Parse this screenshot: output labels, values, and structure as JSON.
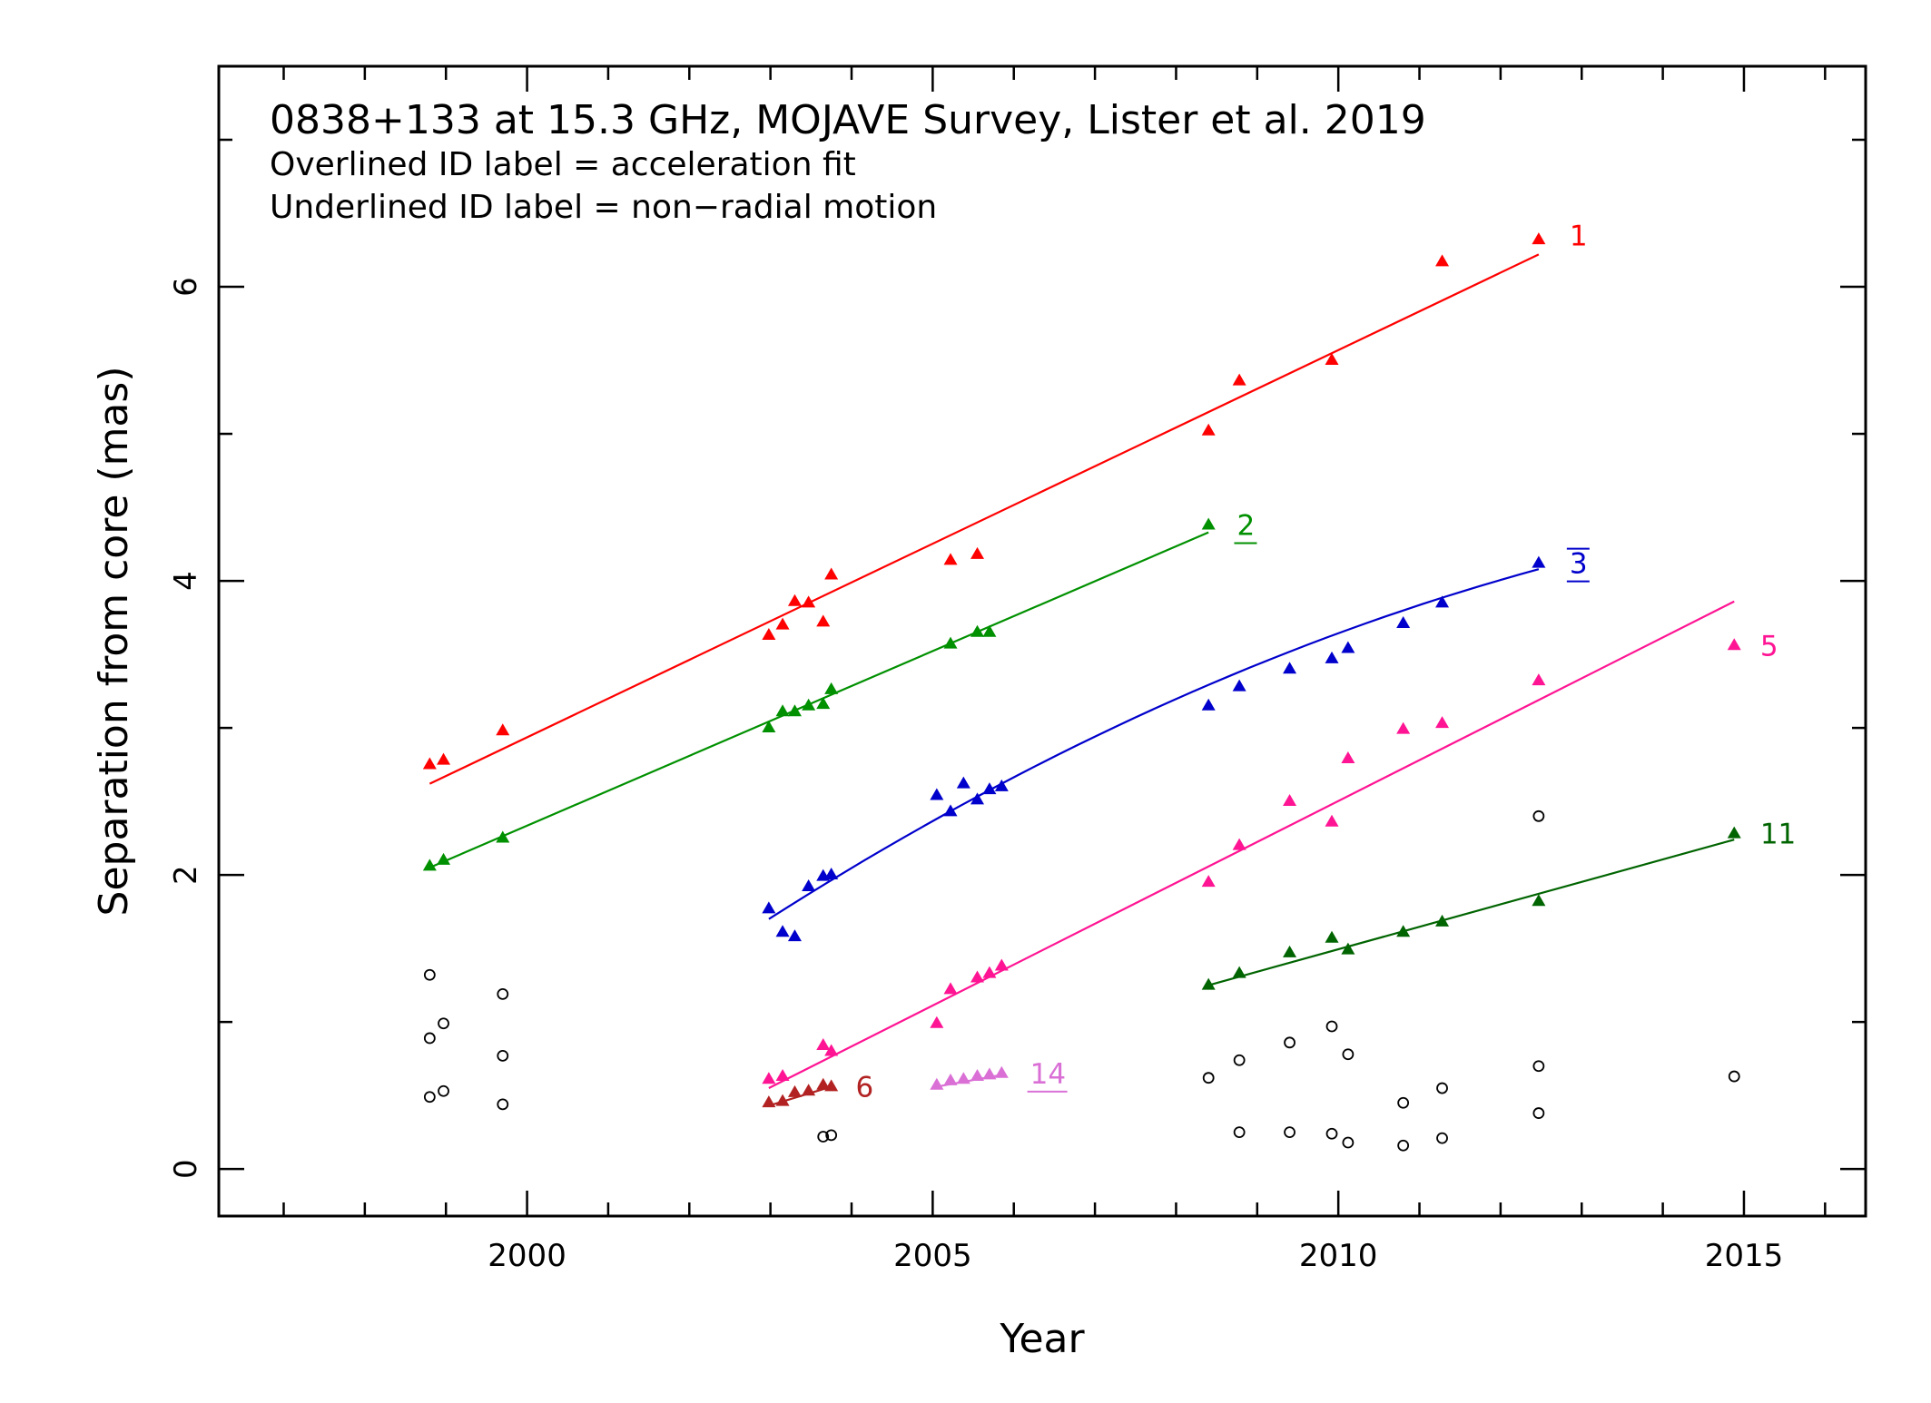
{
  "chart_data": {
    "type": "scatter",
    "title": "0838+133 at 15.3 GHz, MOJAVE Survey, Lister et al. 2019",
    "subtitle_lines": [
      "Overlined ID label = acceleration fit",
      "Underlined ID label = non−radial motion"
    ],
    "xlabel": "Year",
    "ylabel": "Separation from core (mas)",
    "xlim": [
      1996.2,
      2016.5
    ],
    "ylim": [
      -0.32,
      7.5
    ],
    "x_ticks": [
      2000,
      2005,
      2010,
      2015
    ],
    "x_tick_labels": [
      "2000",
      "2005",
      "2010",
      "2015"
    ],
    "y_ticks": [
      0,
      2,
      4,
      6
    ],
    "y_tick_labels": [
      "0",
      "2",
      "4",
      "6"
    ],
    "grid": false,
    "legend": "none",
    "series": [
      {
        "name": "1",
        "color": "#ff0000",
        "marker": "triangle",
        "label_style": "plain",
        "label_at": [
          2012.85,
          6.35
        ],
        "points": [
          [
            1998.8,
            2.75
          ],
          [
            1998.97,
            2.78
          ],
          [
            1999.7,
            2.98
          ],
          [
            2002.98,
            3.63
          ],
          [
            2003.15,
            3.7
          ],
          [
            2003.3,
            3.86
          ],
          [
            2003.47,
            3.85
          ],
          [
            2003.65,
            3.72
          ],
          [
            2003.75,
            4.04
          ],
          [
            2005.22,
            4.14
          ],
          [
            2005.55,
            4.18
          ],
          [
            2008.4,
            5.02
          ],
          [
            2008.78,
            5.36
          ],
          [
            2009.92,
            5.5
          ],
          [
            2011.28,
            6.17
          ],
          [
            2012.47,
            6.32
          ]
        ],
        "fit": {
          "type": "linear",
          "x": [
            1998.8,
            2012.47
          ],
          "y": [
            2.62,
            6.22
          ]
        }
      },
      {
        "name": "2",
        "color": "#009000",
        "marker": "triangle",
        "label_style": "underline",
        "label_at": [
          2008.75,
          4.38
        ],
        "points": [
          [
            1998.8,
            2.06
          ],
          [
            1998.97,
            2.1
          ],
          [
            1999.7,
            2.25
          ],
          [
            2002.98,
            3.0
          ],
          [
            2003.15,
            3.11
          ],
          [
            2003.3,
            3.11
          ],
          [
            2003.47,
            3.15
          ],
          [
            2003.65,
            3.16
          ],
          [
            2003.75,
            3.26
          ],
          [
            2005.22,
            3.57
          ],
          [
            2005.55,
            3.65
          ],
          [
            2005.7,
            3.65
          ],
          [
            2008.4,
            4.38
          ]
        ],
        "fit": {
          "type": "linear",
          "x": [
            1998.8,
            2008.4
          ],
          "y": [
            2.05,
            4.33
          ]
        }
      },
      {
        "name": "3",
        "color": "#0000cc",
        "marker": "triangle",
        "label_style": "overline",
        "label_at": [
          2012.85,
          4.12
        ],
        "points": [
          [
            2002.98,
            1.77
          ],
          [
            2003.15,
            1.61
          ],
          [
            2003.3,
            1.58
          ],
          [
            2003.47,
            1.92
          ],
          [
            2003.65,
            1.99
          ],
          [
            2003.75,
            2.0
          ],
          [
            2005.05,
            2.54
          ],
          [
            2005.22,
            2.43
          ],
          [
            2005.38,
            2.62
          ],
          [
            2005.55,
            2.51
          ],
          [
            2005.7,
            2.58
          ],
          [
            2005.85,
            2.6
          ],
          [
            2008.4,
            3.15
          ],
          [
            2008.78,
            3.28
          ],
          [
            2009.4,
            3.4
          ],
          [
            2009.92,
            3.47
          ],
          [
            2010.12,
            3.54
          ],
          [
            2010.8,
            3.71
          ],
          [
            2011.28,
            3.85
          ],
          [
            2012.47,
            4.12
          ]
        ],
        "fit": {
          "type": "quadratic",
          "x": [
            2002.98,
            2012.47
          ],
          "coef": [
            -0.0106,
            0.3513,
            1.7
          ],
          "x0": 2002.98
        }
      },
      {
        "name": "5",
        "color": "#ff1493",
        "marker": "triangle",
        "label_style": "plain",
        "label_at": [
          2015.2,
          3.56
        ],
        "points": [
          [
            2002.98,
            0.61
          ],
          [
            2003.15,
            0.63
          ],
          [
            2003.65,
            0.84
          ],
          [
            2003.75,
            0.8
          ],
          [
            2005.05,
            0.99
          ],
          [
            2005.22,
            1.22
          ],
          [
            2005.55,
            1.3
          ],
          [
            2005.7,
            1.33
          ],
          [
            2005.85,
            1.38
          ],
          [
            2008.4,
            1.95
          ],
          [
            2008.78,
            2.2
          ],
          [
            2009.4,
            2.5
          ],
          [
            2009.92,
            2.36
          ],
          [
            2010.12,
            2.79
          ],
          [
            2010.8,
            2.99
          ],
          [
            2011.28,
            3.03
          ],
          [
            2012.47,
            3.32
          ],
          [
            2014.88,
            3.56
          ]
        ],
        "fit": {
          "type": "linear",
          "x": [
            2002.98,
            2014.88
          ],
          "y": [
            0.55,
            3.86
          ]
        }
      },
      {
        "name": "6",
        "color": "#b22222",
        "marker": "triangle",
        "label_style": "plain",
        "label_at": [
          2004.05,
          0.56
        ],
        "points": [
          [
            2002.98,
            0.45
          ],
          [
            2003.15,
            0.46
          ],
          [
            2003.3,
            0.52
          ],
          [
            2003.47,
            0.53
          ],
          [
            2003.65,
            0.57
          ],
          [
            2003.75,
            0.56
          ]
        ],
        "fit": {
          "type": "linear",
          "x": [
            2002.98,
            2003.75
          ],
          "y": [
            0.43,
            0.56
          ]
        }
      },
      {
        "name": "11",
        "color": "#006400",
        "marker": "triangle",
        "label_style": "plain",
        "label_at": [
          2015.2,
          2.28
        ],
        "points": [
          [
            2008.4,
            1.25
          ],
          [
            2008.78,
            1.33
          ],
          [
            2009.4,
            1.47
          ],
          [
            2009.92,
            1.57
          ],
          [
            2010.12,
            1.49
          ],
          [
            2010.8,
            1.61
          ],
          [
            2011.28,
            1.68
          ],
          [
            2012.47,
            1.82
          ],
          [
            2014.88,
            2.28
          ]
        ],
        "fit": {
          "type": "linear",
          "x": [
            2008.4,
            2014.88
          ],
          "y": [
            1.25,
            2.24
          ]
        }
      },
      {
        "name": "14",
        "color": "#da70d6",
        "marker": "triangle",
        "label_style": "underline",
        "label_at": [
          2006.2,
          0.65
        ],
        "points": [
          [
            2005.05,
            0.57
          ],
          [
            2005.22,
            0.6
          ],
          [
            2005.38,
            0.61
          ],
          [
            2005.55,
            0.63
          ],
          [
            2005.7,
            0.64
          ],
          [
            2005.85,
            0.65
          ]
        ],
        "fit": {
          "type": "linear",
          "x": [
            2005.05,
            2005.85
          ],
          "y": [
            0.56,
            0.64
          ]
        }
      },
      {
        "name": "",
        "color": "#000000",
        "marker": "open-circle",
        "label_style": "none",
        "points": [
          [
            1998.8,
            1.32
          ],
          [
            1998.8,
            0.89
          ],
          [
            1998.8,
            0.49
          ],
          [
            1998.97,
            0.99
          ],
          [
            1998.97,
            0.53
          ],
          [
            1999.7,
            1.19
          ],
          [
            1999.7,
            0.77
          ],
          [
            1999.7,
            0.44
          ],
          [
            2003.65,
            0.22
          ],
          [
            2003.75,
            0.23
          ],
          [
            2008.4,
            0.62
          ],
          [
            2008.78,
            0.74
          ],
          [
            2008.78,
            0.25
          ],
          [
            2009.4,
            0.86
          ],
          [
            2009.4,
            0.25
          ],
          [
            2009.92,
            0.97
          ],
          [
            2009.92,
            0.24
          ],
          [
            2010.12,
            0.78
          ],
          [
            2010.12,
            0.18
          ],
          [
            2010.8,
            0.45
          ],
          [
            2010.8,
            0.16
          ],
          [
            2011.28,
            0.55
          ],
          [
            2011.28,
            0.21
          ],
          [
            2012.47,
            2.4
          ],
          [
            2012.47,
            0.7
          ],
          [
            2012.47,
            0.38
          ],
          [
            2014.88,
            0.63
          ]
        ]
      }
    ]
  }
}
